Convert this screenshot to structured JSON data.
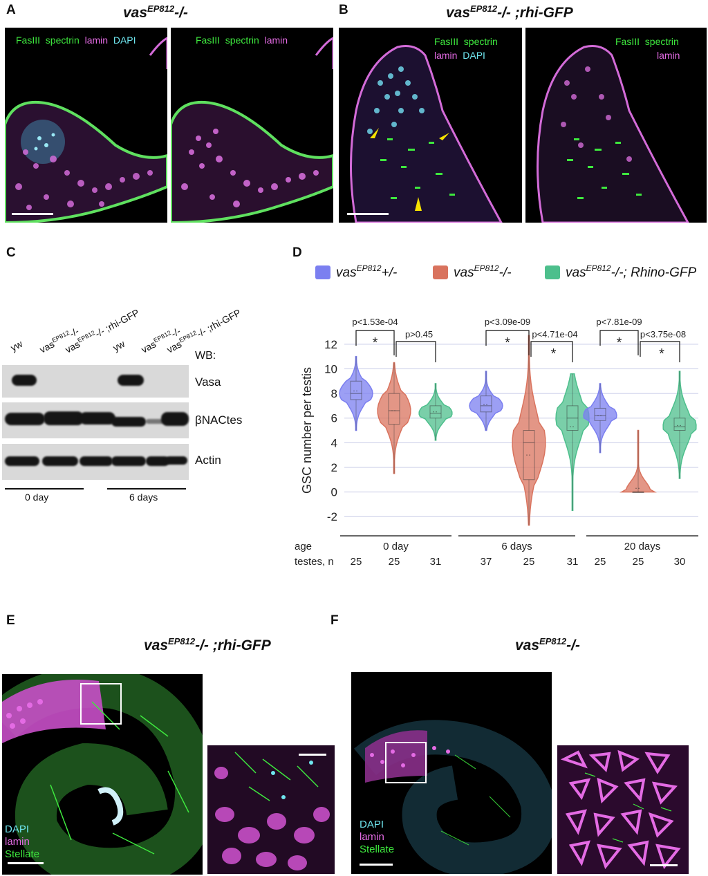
{
  "panels": {
    "A": {
      "letter": "A",
      "title": "vas",
      "title_sup": "EP812",
      "title_suffix": "-/-",
      "left_labels": {
        "fas": "FasIII",
        "spectrin": "spectrin",
        "lamin": "lamin",
        "dapi": "DAPI"
      },
      "right_labels": {
        "fas": "FasIII",
        "spectrin": "spectrin",
        "lamin": "lamin"
      }
    },
    "B": {
      "letter": "B",
      "title": "vas",
      "title_sup": "EP812",
      "title_suffix": "-/- ;rhi-GFP",
      "left_labels": {
        "fas": "FasIII",
        "spectrin": "spectrin",
        "lamin": "lamin",
        "dapi": "DAPI"
      },
      "right_labels": {
        "fas": "FasIII",
        "spectrin": "spectrin",
        "lamin": "lamin"
      }
    },
    "C": {
      "letter": "C",
      "wb_label": "WB:",
      "lanes": [
        {
          "main": "yw",
          "sup": "",
          "suffix": ""
        },
        {
          "main": "vas",
          "sup": "EP812",
          "suffix": "-/-"
        },
        {
          "main": "vas",
          "sup": "EP812",
          "suffix": "-/- ;rhi-GFP"
        },
        {
          "main": "yw",
          "sup": "",
          "suffix": ""
        },
        {
          "main": "vas",
          "sup": "EP812",
          "suffix": "-/-"
        },
        {
          "main": "vas",
          "sup": "EP812",
          "suffix": "-/- ;rhi-GFP"
        }
      ],
      "blots": [
        "Vasa",
        "βNACtes",
        "Actin"
      ],
      "groups": [
        "0 day",
        "6 days"
      ]
    },
    "D": {
      "letter": "D"
    },
    "E": {
      "letter": "E",
      "title": "vas",
      "title_sup": "EP812",
      "title_suffix": "-/- ;rhi-GFP",
      "labels": {
        "dapi": "DAPI",
        "lamin": "lamin",
        "stellate": "Stellate"
      }
    },
    "F": {
      "letter": "F",
      "title": "vas",
      "title_sup": "EP812",
      "title_suffix": "-/-",
      "labels": {
        "dapi": "DAPI",
        "lamin": "lamin",
        "stellate": "Stellate"
      }
    }
  },
  "colors": {
    "blue": "#7b7ff0",
    "red": "#d9735e",
    "green": "#4dbf8c",
    "fas_green": "#3ee83e",
    "lamin_magenta": "#e46be4",
    "dapi_cyan": "#6fe6ef"
  },
  "chart_data": {
    "type": "violin",
    "ylabel": "GSC number per testis",
    "ylim": [
      -3,
      13
    ],
    "yticks": [
      -2,
      0,
      2,
      4,
      6,
      8,
      10,
      12
    ],
    "grid": true,
    "legend_position": "top",
    "series": [
      {
        "name_main": "vas",
        "name_sup": "EP812",
        "name_suffix": "+/-",
        "color": "#7b7ff0"
      },
      {
        "name_main": "vas",
        "name_sup": "EP812",
        "name_suffix": "-/-",
        "color": "#d9735e"
      },
      {
        "name_main": "vas",
        "name_sup": "EP812",
        "name_suffix": "-/-; Rhino-GFP",
        "color": "#4dbf8c"
      }
    ],
    "row_labels": {
      "age": "age",
      "testes": "testes, n"
    },
    "groups": [
      {
        "age": "0 day",
        "n": [
          "25",
          "25",
          "31"
        ],
        "violins": [
          {
            "series": 0,
            "min": 5,
            "q1": 7.5,
            "median": 8,
            "q3": 9,
            "max": 11,
            "mean": 8.2
          },
          {
            "series": 1,
            "min": 1.5,
            "q1": 5.5,
            "median": 6.6,
            "q3": 8,
            "max": 10.5,
            "mean": 6.6
          },
          {
            "series": 2,
            "min": 4.2,
            "q1": 6,
            "median": 6.4,
            "q3": 7,
            "max": 8.8,
            "mean": 6.5
          }
        ],
        "tests": [
          {
            "p": "p<1.53e-04",
            "sig": "*"
          },
          {
            "p": "p>0.45",
            "sig": ""
          }
        ]
      },
      {
        "age": "6 days",
        "n": [
          "37",
          "25",
          "31"
        ],
        "violins": [
          {
            "series": 0,
            "min": 5,
            "q1": 6.5,
            "median": 7,
            "q3": 7.8,
            "max": 9.8,
            "mean": 7.1
          },
          {
            "series": 1,
            "min": -2.7,
            "q1": 1,
            "median": 4,
            "q3": 5,
            "max": 12.7,
            "mean": 3
          },
          {
            "series": 2,
            "min": -1.5,
            "q1": 5,
            "median": 6,
            "q3": 7,
            "max": 9.6,
            "mean": 5.3
          }
        ],
        "tests": [
          {
            "p": "p<3.09e-09",
            "sig": "*"
          },
          {
            "p": "p<4.71e-04",
            "sig": "*"
          }
        ]
      },
      {
        "age": "20 days",
        "n": [
          "25",
          "25",
          "30"
        ],
        "violins": [
          {
            "series": 0,
            "min": 3.2,
            "q1": 5.8,
            "median": 6.2,
            "q3": 6.8,
            "max": 8.8,
            "mean": 6.2
          },
          {
            "series": 1,
            "min": 0,
            "q1": 0,
            "median": 0,
            "q3": 0,
            "max": 5,
            "mean": 0.3
          },
          {
            "series": 2,
            "min": 1.1,
            "q1": 5,
            "median": 5.3,
            "q3": 6,
            "max": 9.8,
            "mean": 5.4
          }
        ],
        "tests": [
          {
            "p": "p<7.81e-09",
            "sig": "*"
          },
          {
            "p": "p<3.75e-08",
            "sig": "*"
          }
        ]
      }
    ]
  }
}
